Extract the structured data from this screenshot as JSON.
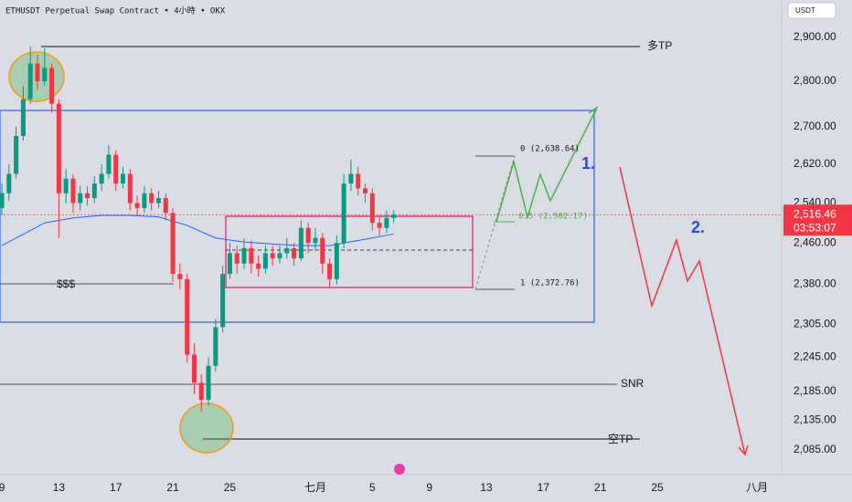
{
  "header": {
    "title": "ETHUSDT Perpetual Swap Contract • 4小時 • OKX",
    "currency": "USDT"
  },
  "chart_data": {
    "type": "candlestick",
    "log_scale": true,
    "xlim": [
      8.87,
      63.4
    ],
    "ylim": [
      2044,
      2988
    ],
    "xticks": [
      9,
      13,
      17,
      21,
      25,
      {
        "value": 31,
        "label": "七月"
      },
      {
        "value": 35,
        "label": "5"
      },
      {
        "value": 39,
        "label": "9"
      },
      {
        "value": 43,
        "label": "13"
      },
      {
        "value": 47,
        "label": "17"
      },
      {
        "value": 51,
        "label": "21"
      },
      {
        "value": 55,
        "label": "25"
      },
      {
        "value": 62,
        "label": "八月"
      }
    ],
    "yticks": [
      {
        "value": 2900,
        "label": "2,900.00"
      },
      {
        "value": 2800,
        "label": "2,800.00"
      },
      {
        "value": 2700,
        "label": "2,700.00"
      },
      {
        "value": 2620,
        "label": "2,620.00"
      },
      {
        "value": 2540,
        "label": "2,540.00"
      },
      {
        "value": 2460,
        "label": "2,460.00"
      },
      {
        "value": 2380,
        "label": "2,380.00"
      },
      {
        "value": 2305,
        "label": "2,305.00"
      },
      {
        "value": 2245,
        "label": "2,245.00"
      },
      {
        "value": 2185,
        "label": "2,185.00"
      },
      {
        "value": 2135,
        "label": "2,135.00"
      },
      {
        "value": 2085,
        "label": "2,085.00"
      }
    ],
    "x": [
      9,
      9.5,
      10,
      10.5,
      11,
      11.5,
      12,
      12.5,
      13,
      13.5,
      14,
      14.5,
      15,
      15.5,
      16,
      16.5,
      17,
      17.5,
      18,
      18.5,
      19,
      19.5,
      20,
      20.5,
      21,
      21.5,
      22,
      22.5,
      23,
      23.5,
      24,
      24.5,
      25,
      25.5,
      26,
      26.5,
      27,
      27.5,
      28,
      28.5,
      29,
      29.5,
      30,
      30.5,
      31,
      31.5,
      32,
      32.5,
      33,
      33.5,
      34,
      34.5,
      35,
      35.5,
      36,
      36.5
    ],
    "open": [
      2530,
      2560,
      2600,
      2680,
      2760,
      2840,
      2800,
      2830,
      2750,
      2560,
      2590,
      2540,
      2560,
      2550,
      2580,
      2600,
      2640,
      2580,
      2600,
      2540,
      2530,
      2560,
      2540,
      2550,
      2520,
      2400,
      2390,
      2250,
      2200,
      2170,
      2230,
      2300,
      2400,
      2440,
      2420,
      2450,
      2420,
      2410,
      2440,
      2430,
      2440,
      2450,
      2430,
      2490,
      2460,
      2470,
      2420,
      2390,
      2460,
      2580,
      2600,
      2570,
      2560,
      2500,
      2490,
      2510
    ],
    "high": [
      2580,
      2620,
      2700,
      2790,
      2880,
      2860,
      2875,
      2840,
      2760,
      2610,
      2600,
      2575,
      2575,
      2595,
      2620,
      2660,
      2650,
      2615,
      2610,
      2555,
      2575,
      2570,
      2565,
      2560,
      2530,
      2420,
      2400,
      2270,
      2215,
      2245,
      2315,
      2415,
      2460,
      2455,
      2470,
      2465,
      2435,
      2455,
      2455,
      2455,
      2470,
      2460,
      2505,
      2500,
      2490,
      2480,
      2430,
      2475,
      2600,
      2630,
      2615,
      2580,
      2570,
      2515,
      2525,
      2525
    ],
    "low": [
      2515,
      2545,
      2590,
      2670,
      2750,
      2780,
      2790,
      2730,
      2470,
      2540,
      2520,
      2525,
      2535,
      2540,
      2565,
      2590,
      2565,
      2570,
      2525,
      2515,
      2520,
      2525,
      2530,
      2505,
      2385,
      2370,
      2235,
      2180,
      2150,
      2160,
      2220,
      2290,
      2390,
      2400,
      2410,
      2400,
      2395,
      2400,
      2415,
      2420,
      2430,
      2415,
      2425,
      2440,
      2445,
      2400,
      2375,
      2380,
      2450,
      2565,
      2555,
      2540,
      2485,
      2475,
      2480,
      2500
    ],
    "close": [
      2560,
      2600,
      2680,
      2760,
      2840,
      2800,
      2830,
      2750,
      2560,
      2590,
      2540,
      2560,
      2550,
      2580,
      2600,
      2640,
      2580,
      2600,
      2540,
      2530,
      2560,
      2540,
      2550,
      2520,
      2400,
      2390,
      2250,
      2200,
      2170,
      2230,
      2300,
      2400,
      2440,
      2420,
      2450,
      2420,
      2410,
      2440,
      2430,
      2440,
      2450,
      2430,
      2490,
      2460,
      2470,
      2420,
      2390,
      2460,
      2580,
      2600,
      2570,
      2560,
      2500,
      2490,
      2510,
      2516.46
    ],
    "up_color": "#089981",
    "down_color": "#f23645",
    "moving_average": {
      "color": "#2962ff",
      "x": [
        9,
        10,
        12,
        14,
        16,
        18,
        20,
        22,
        24,
        26,
        28,
        30,
        32,
        34,
        36.5
      ],
      "values": [
        2455,
        2470,
        2500,
        2510,
        2515,
        2515,
        2512,
        2495,
        2470,
        2462,
        2458,
        2455,
        2455,
        2465,
        2478
      ]
    },
    "last_price": {
      "value": 2516.46,
      "label": "2,516.46"
    },
    "countdown": "03:53:07",
    "annotations": {
      "long_tp": "多TP",
      "short_tp": "空TP",
      "snr": "SNR",
      "liquidity": "$$$",
      "fib": [
        "0 (2,638.64)",
        "0.5 (2,502.17)",
        "1 (2,372.76)"
      ],
      "wave_1": "1.",
      "wave_2": "2."
    }
  }
}
